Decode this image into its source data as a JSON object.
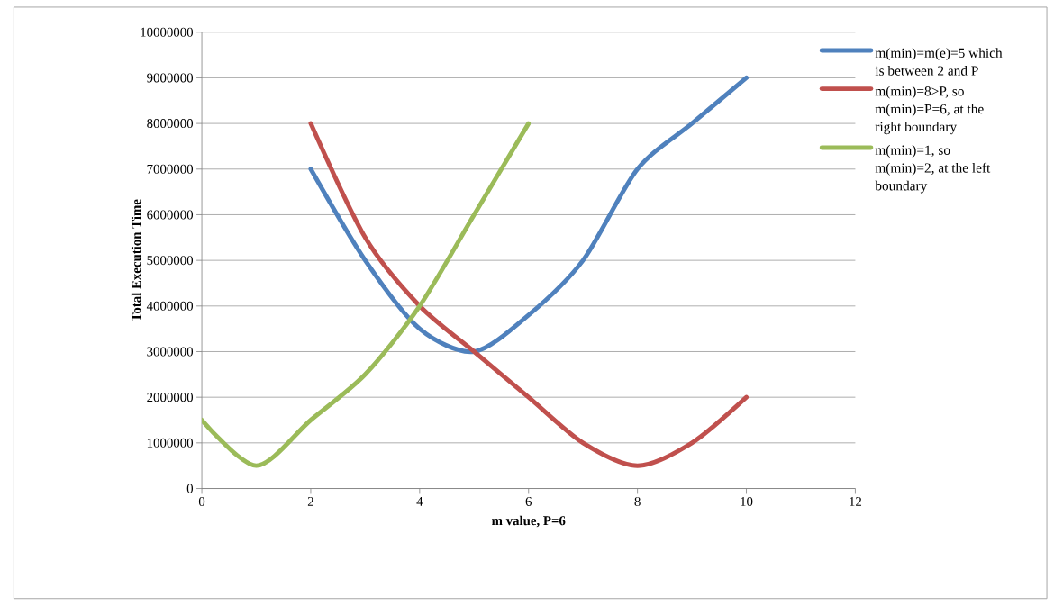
{
  "chart_data": {
    "type": "line",
    "xlabel": "m value, P=6",
    "ylabel": "Total Execution Time",
    "xlim": [
      0,
      12
    ],
    "xticks": [
      0,
      2,
      4,
      6,
      8,
      10,
      12
    ],
    "ylim": [
      0,
      10000000
    ],
    "yticks": [
      0,
      1000000,
      2000000,
      3000000,
      4000000,
      5000000,
      6000000,
      7000000,
      8000000,
      9000000,
      10000000
    ],
    "grid": "y",
    "legend": "right",
    "series": [
      {
        "name": "m(min)=m(e)=5 which is between 2 and P",
        "color": "#4f81bd",
        "x": [
          2,
          3,
          4,
          5,
          6,
          7,
          8,
          9,
          10
        ],
        "values": [
          7000000,
          5000000,
          3500000,
          3000000,
          3800000,
          5000000,
          7000000,
          8000000,
          9000000
        ]
      },
      {
        "name": "m(min)=8>P, so m(min)=P=6, at the right boundary",
        "color": "#c0504d",
        "x": [
          2,
          3,
          4,
          5,
          6,
          7,
          8,
          9,
          10
        ],
        "values": [
          8000000,
          5500000,
          4000000,
          3000000,
          2000000,
          1000000,
          500000,
          1000000,
          2000000
        ]
      },
      {
        "name": "m(min)=1, so m(min)=2, at the left boundary",
        "color": "#9bbb59",
        "x": [
          0,
          1,
          2,
          3,
          4,
          5,
          6
        ],
        "values": [
          1500000,
          500000,
          1500000,
          2500000,
          4000000,
          6000000,
          8000000
        ]
      }
    ]
  }
}
